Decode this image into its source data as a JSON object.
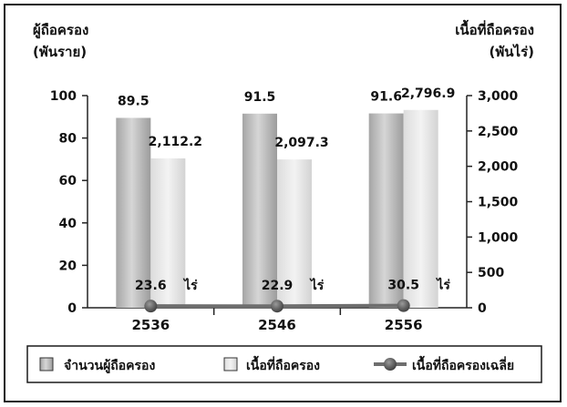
{
  "chart_data": {
    "type": "bar",
    "categories": [
      "2536",
      "2546",
      "2556"
    ],
    "left_axis": {
      "title_line1": "ผู้ถือครอง",
      "title_line2": "(พันราย)",
      "ylim": [
        0,
        100
      ],
      "ticks": [
        "0",
        "20",
        "40",
        "60",
        "80",
        "100"
      ]
    },
    "right_axis": {
      "title_line1": "เนื้อที่ถือครอง",
      "title_line2": "(พันไร่)",
      "ylim": [
        0,
        3000
      ],
      "ticks": [
        "0",
        "500",
        "1,000",
        "1,500",
        "2,000",
        "2,500",
        "3,000"
      ]
    },
    "series": [
      {
        "name": "จำนวนผู้ถือครอง",
        "type": "bar",
        "axis": "left",
        "values": [
          89.5,
          91.5,
          91.6
        ],
        "labels": [
          "89.5",
          "91.5",
          "91.6"
        ],
        "color": "#b8b8b8"
      },
      {
        "name": "เนื้อที่ถือครอง",
        "type": "bar",
        "axis": "right",
        "values": [
          2112.2,
          2097.3,
          2796.9
        ],
        "labels": [
          "2,112.2",
          "2,097.3",
          "2,796.9"
        ],
        "color": "#e4e4e4"
      },
      {
        "name": "เนื้อที่ถือครองเฉลี่ย",
        "type": "line",
        "axis": "right",
        "values": [
          23.6,
          22.9,
          30.5
        ],
        "labels": [
          "23.6",
          "22.9",
          "30.5"
        ],
        "unit": "ไร่",
        "color": "#6e6e6e"
      }
    ],
    "grid": false,
    "legend_position": "bottom"
  }
}
